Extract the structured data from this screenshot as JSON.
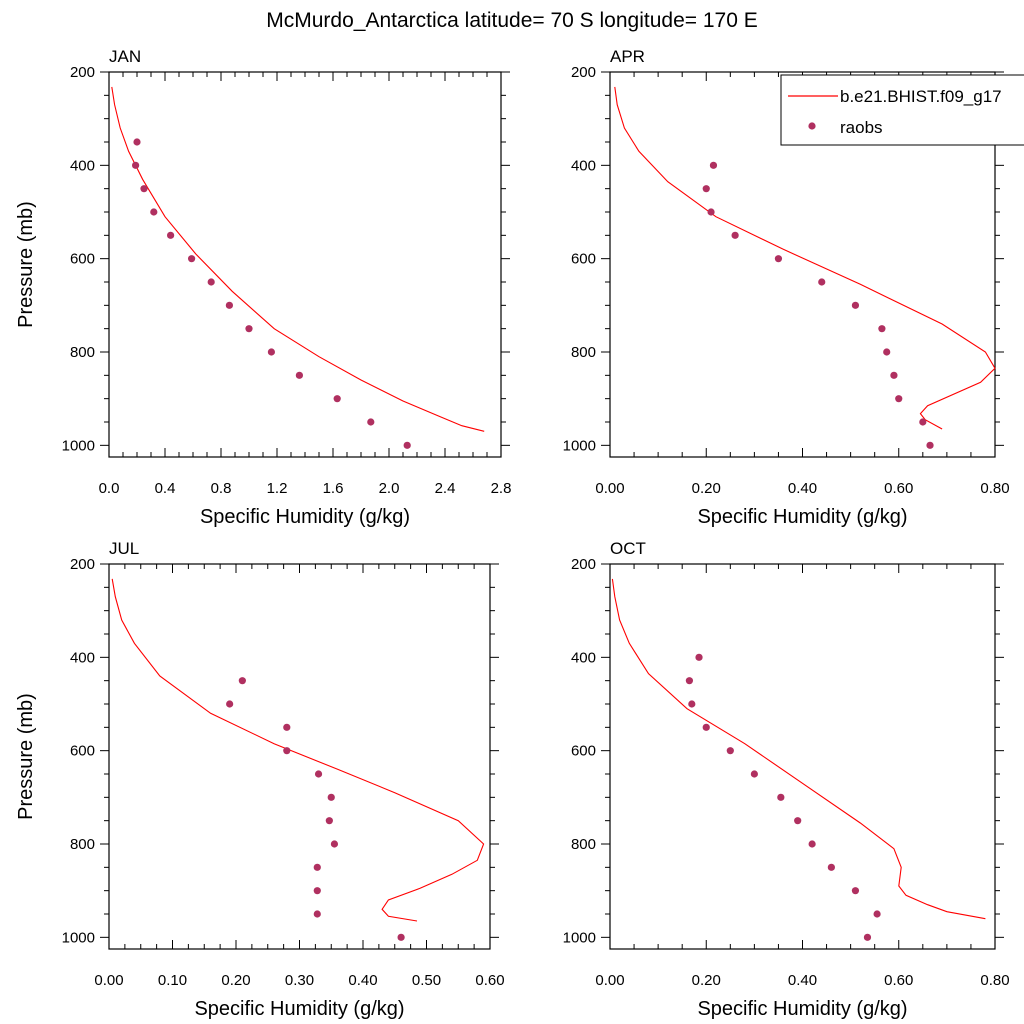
{
  "title": "McMurdo_Antarctica  latitude= 70 S longitude= 170 E",
  "legend": {
    "position": "top-right",
    "entries": [
      {
        "label": "b.e21.BHIST.f09_g17",
        "style": "line",
        "color": "#ff0000"
      },
      {
        "label": "raobs",
        "style": "marker",
        "color": "#b03060"
      }
    ]
  },
  "chart_data": [
    {
      "type": "line",
      "panel": "JAN",
      "xlabel": "Specific Humidity (g/kg)",
      "ylabel": "Pressure (mb)",
      "xlim": [
        0,
        2.8
      ],
      "ylim": [
        200,
        1025
      ],
      "y_reversed": true,
      "xticks": [
        0,
        0.4,
        0.8,
        1.2,
        1.6,
        2.0,
        2.4,
        2.8
      ],
      "xtick_labels": [
        "0.0",
        "0.4",
        "0.8",
        "1.2",
        "1.6",
        "2.0",
        "2.4",
        "2.8"
      ],
      "yticks": [
        200,
        400,
        600,
        800,
        1000
      ],
      "ytick_labels": [
        "200",
        "400",
        "600",
        "800",
        "1000"
      ],
      "series": [
        {
          "name": "b.e21.BHIST.f09_g17",
          "kind": "line",
          "x": [
            0.02,
            0.04,
            0.08,
            0.14,
            0.24,
            0.4,
            0.62,
            0.88,
            1.18,
            1.5,
            1.8,
            2.1,
            2.36,
            2.52,
            2.68
          ],
          "y": [
            232,
            270,
            320,
            370,
            430,
            510,
            590,
            670,
            750,
            810,
            860,
            905,
            938,
            958,
            970
          ]
        },
        {
          "name": "raobs",
          "kind": "scatter",
          "x": [
            0.2,
            0.19,
            0.25,
            0.32,
            0.44,
            0.59,
            0.73,
            0.86,
            1.0,
            1.16,
            1.36,
            1.63,
            1.87,
            2.13
          ],
          "y": [
            350,
            400,
            450,
            500,
            550,
            600,
            650,
            700,
            750,
            800,
            850,
            900,
            950,
            1000
          ]
        }
      ]
    },
    {
      "type": "line",
      "panel": "APR",
      "xlabel": "Specific Humidity (g/kg)",
      "ylabel": "",
      "xlim": [
        0,
        0.8
      ],
      "ylim": [
        200,
        1025
      ],
      "y_reversed": true,
      "xticks": [
        0,
        0.2,
        0.4,
        0.6,
        0.8
      ],
      "xtick_labels": [
        "0.00",
        "0.20",
        "0.40",
        "0.60",
        "0.80"
      ],
      "yticks": [
        200,
        400,
        600,
        800,
        1000
      ],
      "ytick_labels": [
        "200",
        "400",
        "600",
        "800",
        "1000"
      ],
      "series": [
        {
          "name": "b.e21.BHIST.f09_g17",
          "kind": "line",
          "x": [
            0.01,
            0.015,
            0.03,
            0.06,
            0.12,
            0.22,
            0.36,
            0.52,
            0.69,
            0.78,
            0.8,
            0.77,
            0.66,
            0.645,
            0.655,
            0.69
          ],
          "y": [
            232,
            270,
            320,
            370,
            435,
            510,
            580,
            655,
            740,
            800,
            835,
            865,
            915,
            932,
            945,
            965
          ]
        },
        {
          "name": "raobs",
          "kind": "scatter",
          "x": [
            0.215,
            0.2,
            0.21,
            0.26,
            0.35,
            0.44,
            0.51,
            0.565,
            0.575,
            0.59,
            0.6,
            0.65,
            0.665
          ],
          "y": [
            400,
            450,
            500,
            550,
            600,
            650,
            700,
            750,
            800,
            850,
            900,
            950,
            1000
          ]
        }
      ]
    },
    {
      "type": "line",
      "panel": "JUL",
      "xlabel": "Specific Humidity (g/kg)",
      "ylabel": "Pressure (mb)",
      "xlim": [
        0,
        0.6
      ],
      "ylim": [
        200,
        1025
      ],
      "y_reversed": true,
      "xticks": [
        0,
        0.1,
        0.2,
        0.3,
        0.4,
        0.5,
        0.6
      ],
      "xtick_labels": [
        "0.00",
        "0.10",
        "0.20",
        "0.30",
        "0.40",
        "0.50",
        "0.60"
      ],
      "yticks": [
        200,
        400,
        600,
        800,
        1000
      ],
      "ytick_labels": [
        "200",
        "400",
        "600",
        "800",
        "1000"
      ],
      "series": [
        {
          "name": "b.e21.BHIST.f09_g17",
          "kind": "line",
          "x": [
            0.005,
            0.01,
            0.02,
            0.04,
            0.08,
            0.16,
            0.26,
            0.36,
            0.45,
            0.55,
            0.59,
            0.58,
            0.54,
            0.49,
            0.44,
            0.43,
            0.44,
            0.485
          ],
          "y": [
            232,
            270,
            320,
            370,
            440,
            520,
            585,
            640,
            690,
            750,
            800,
            835,
            865,
            895,
            920,
            940,
            955,
            965
          ]
        },
        {
          "name": "raobs",
          "kind": "scatter",
          "x": [
            0.21,
            0.19,
            0.28,
            0.28,
            0.33,
            0.35,
            0.347,
            0.355,
            0.328,
            0.328,
            0.328,
            0.46
          ],
          "y": [
            450,
            500,
            550,
            600,
            650,
            700,
            750,
            800,
            850,
            900,
            950,
            1000
          ]
        }
      ]
    },
    {
      "type": "line",
      "panel": "OCT",
      "xlabel": "Specific Humidity (g/kg)",
      "ylabel": "",
      "xlim": [
        0,
        0.8
      ],
      "ylim": [
        200,
        1025
      ],
      "y_reversed": true,
      "xticks": [
        0,
        0.2,
        0.4,
        0.6,
        0.8
      ],
      "xtick_labels": [
        "0.00",
        "0.20",
        "0.40",
        "0.60",
        "0.80"
      ],
      "yticks": [
        200,
        400,
        600,
        800,
        1000
      ],
      "ytick_labels": [
        "200",
        "400",
        "600",
        "800",
        "1000"
      ],
      "series": [
        {
          "name": "b.e21.BHIST.f09_g17",
          "kind": "line",
          "x": [
            0.005,
            0.01,
            0.02,
            0.04,
            0.08,
            0.16,
            0.28,
            0.4,
            0.52,
            0.59,
            0.605,
            0.6,
            0.615,
            0.66,
            0.7,
            0.78
          ],
          "y": [
            232,
            270,
            320,
            370,
            435,
            510,
            585,
            670,
            755,
            810,
            850,
            890,
            910,
            930,
            945,
            960
          ]
        },
        {
          "name": "raobs",
          "kind": "scatter",
          "x": [
            0.185,
            0.165,
            0.17,
            0.2,
            0.25,
            0.3,
            0.355,
            0.39,
            0.42,
            0.46,
            0.51,
            0.555,
            0.535
          ],
          "y": [
            400,
            450,
            500,
            550,
            600,
            650,
            700,
            750,
            800,
            850,
            900,
            950,
            1000
          ]
        }
      ]
    }
  ]
}
